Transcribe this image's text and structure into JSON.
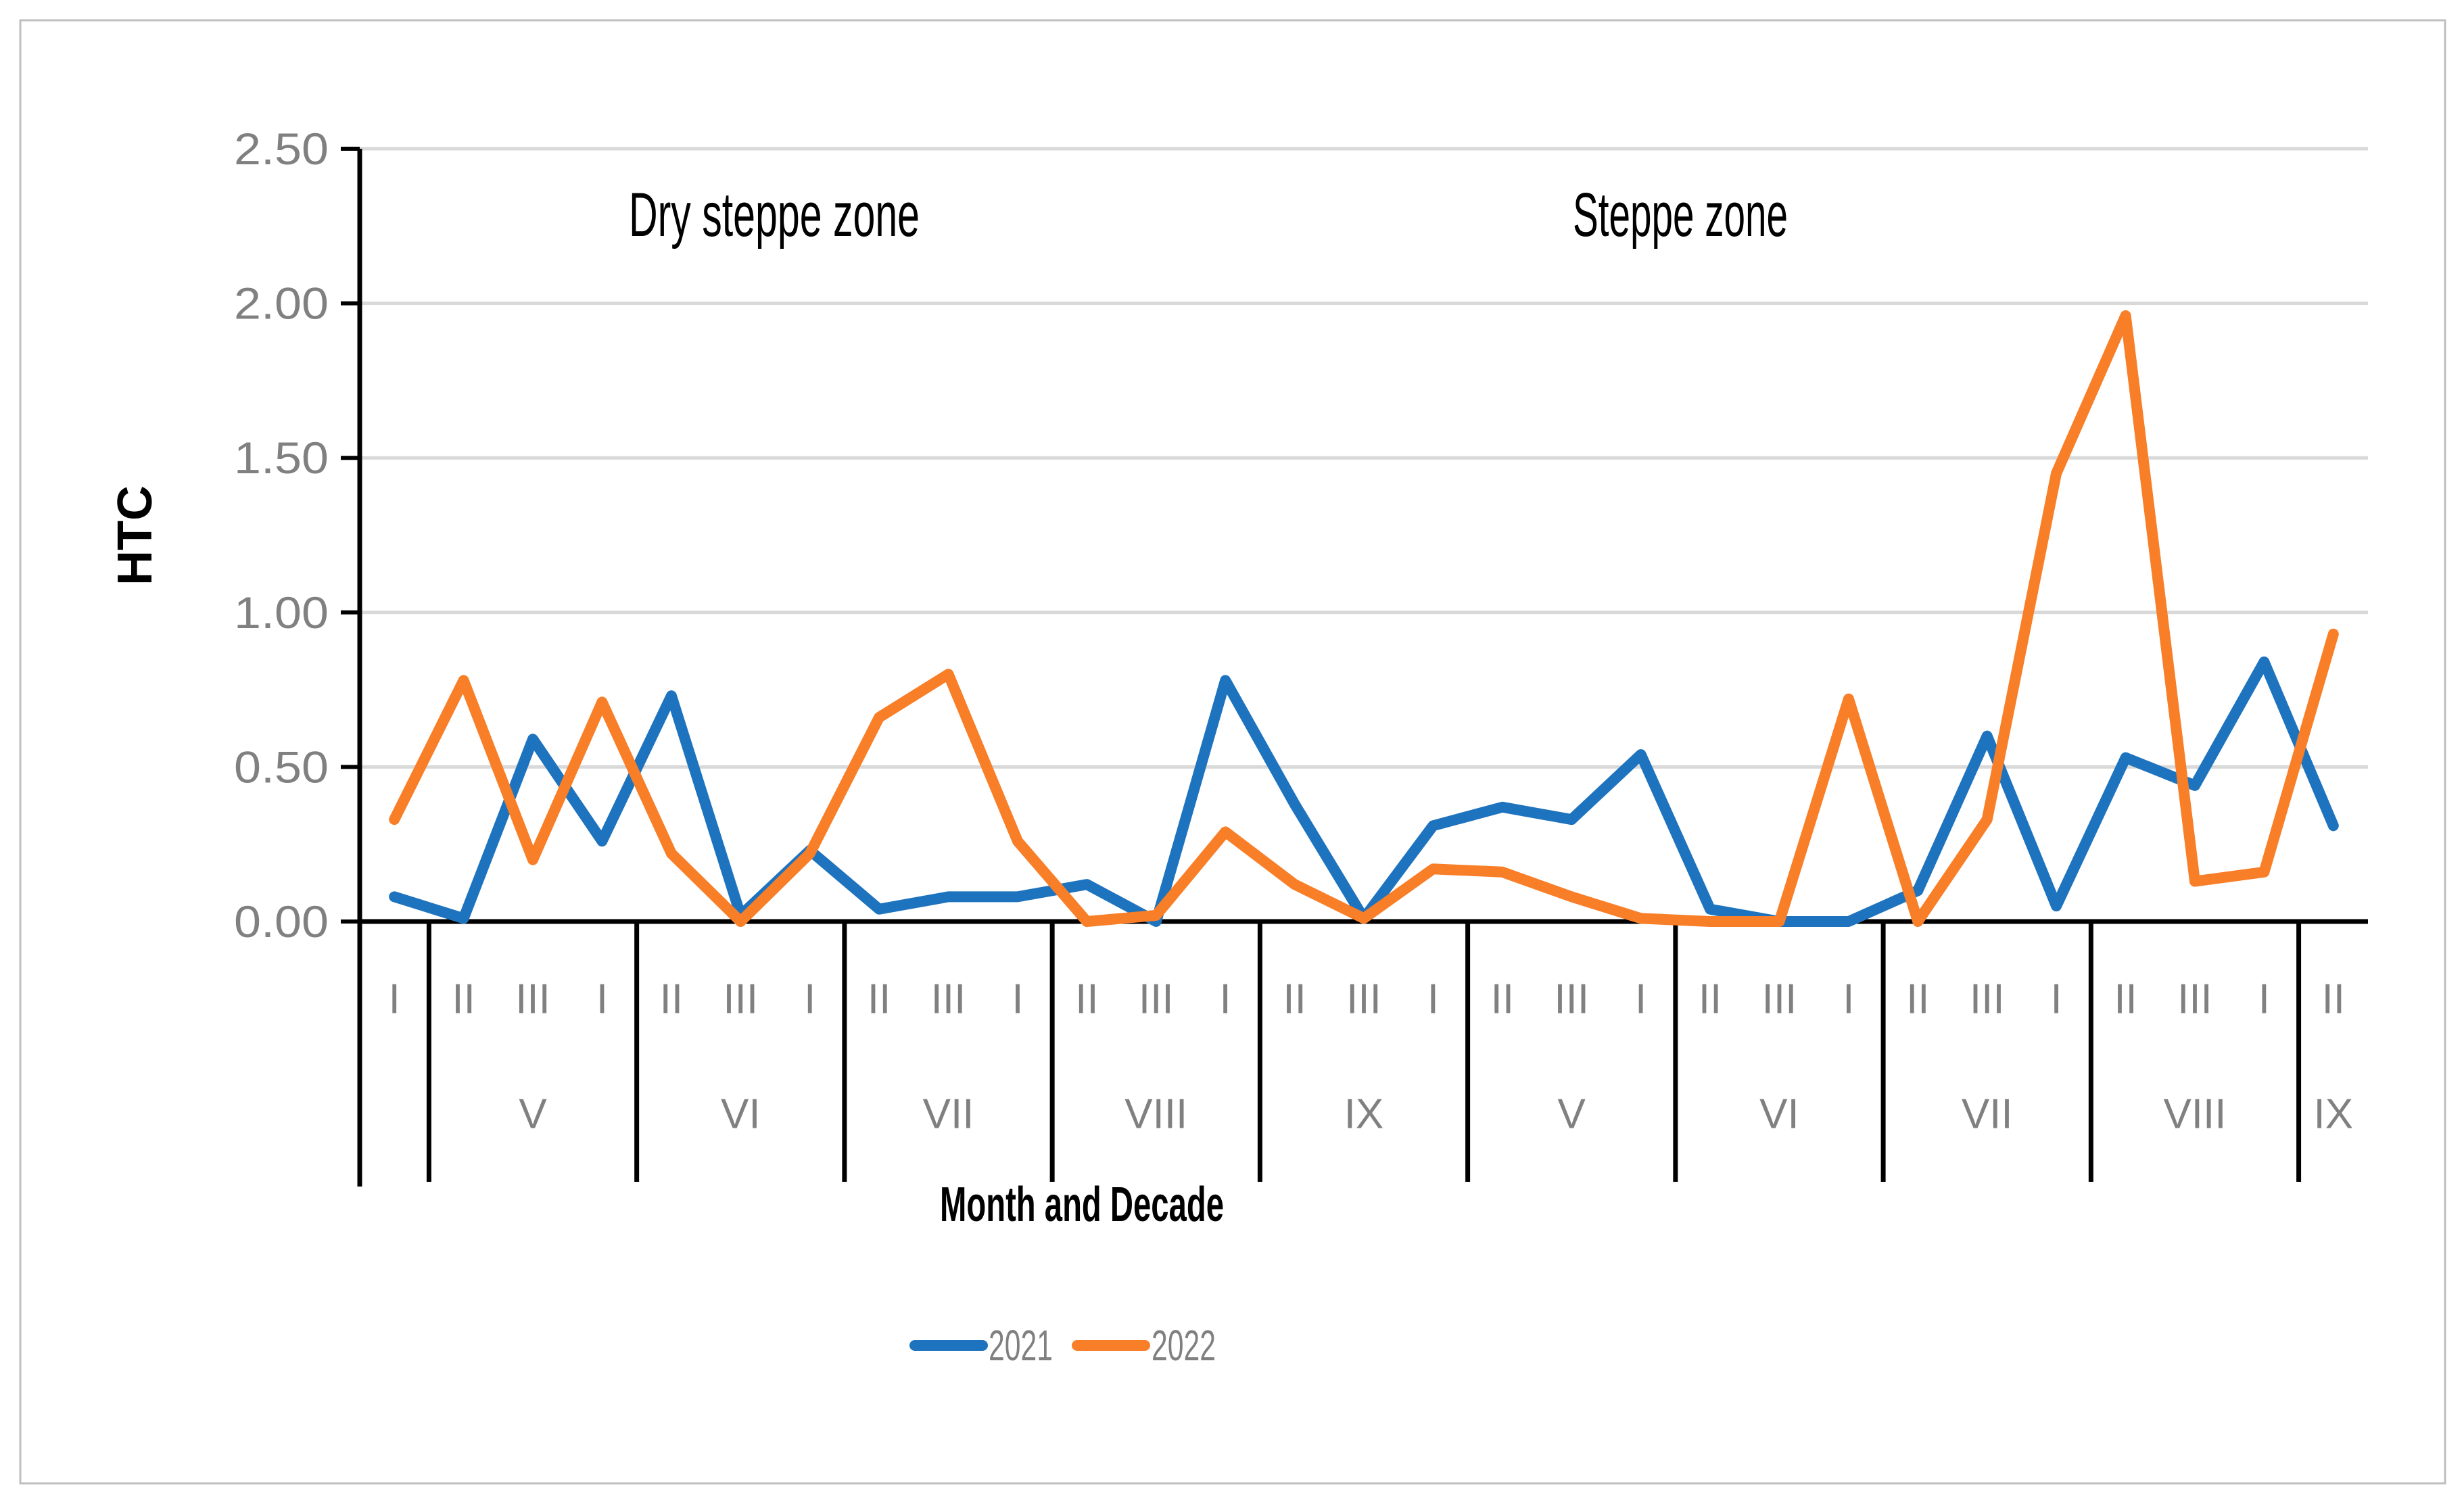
{
  "figure": {
    "border_color": "#BFBFBF",
    "background_color": "#FFFFFF"
  },
  "chart_data": {
    "type": "line",
    "zone_titles": [
      "Dry steppe zone",
      "Steppe zone"
    ],
    "ylabel": "HTC",
    "xlabel": "Month and Decade",
    "ylim": [
      0.0,
      2.5
    ],
    "ytick_labels": [
      "0.00",
      "0.50",
      "1.00",
      "1.50",
      "2.00",
      "2.50"
    ],
    "yticks": [
      0.0,
      0.5,
      1.0,
      1.5,
      2.0,
      2.5
    ],
    "grid": true,
    "legend_position": "bottom",
    "x_decade_labels": [
      "I",
      "II",
      "III",
      "I",
      "II",
      "III",
      "I",
      "II",
      "III",
      "I",
      "II",
      "III",
      "I",
      "II",
      "III",
      "I",
      "II",
      "III",
      "I",
      "II",
      "III",
      "I",
      "II",
      "III",
      "I",
      "II",
      "III",
      "I",
      "II"
    ],
    "x_month_labels": [
      {
        "label": "V",
        "center_index": 2
      },
      {
        "label": "VI",
        "center_index": 5
      },
      {
        "label": "VII",
        "center_index": 8
      },
      {
        "label": "VIII",
        "center_index": 11
      },
      {
        "label": "IX",
        "center_index": 14
      },
      {
        "label": "V",
        "center_index": 17
      },
      {
        "label": "VI",
        "center_index": 20
      },
      {
        "label": "VII",
        "center_index": 23
      },
      {
        "label": "VIII",
        "center_index": 26
      },
      {
        "label": "IX",
        "center_index": 28
      }
    ],
    "group_separators_after_index": [
      0,
      3,
      6,
      9,
      12,
      15,
      18,
      21,
      24,
      27
    ],
    "series": [
      {
        "name": "2021",
        "color": "#1E73BE",
        "values": [
          0.08,
          0.01,
          0.59,
          0.26,
          0.73,
          0.02,
          0.23,
          0.04,
          0.08,
          0.08,
          0.12,
          0.0,
          0.78,
          0.38,
          0.01,
          0.31,
          0.37,
          0.33,
          0.54,
          0.04,
          0.0,
          0.0,
          0.1,
          0.6,
          0.05,
          0.53,
          0.44,
          0.84,
          0.31
        ]
      },
      {
        "name": "2022",
        "color": "#F87E28",
        "values": [
          0.33,
          0.78,
          0.2,
          0.71,
          0.22,
          0.0,
          0.22,
          0.66,
          0.8,
          0.26,
          0.0,
          0.02,
          0.29,
          0.12,
          0.01,
          0.17,
          0.16,
          0.08,
          0.01,
          0.0,
          0.0,
          0.72,
          0.0,
          0.33,
          1.45,
          1.96,
          0.13,
          0.16,
          0.93
        ]
      }
    ],
    "colors": {
      "gridline": "#D9D9D9",
      "axis": "#000000",
      "tick_text": "#808080",
      "title_text": "#000000"
    }
  }
}
